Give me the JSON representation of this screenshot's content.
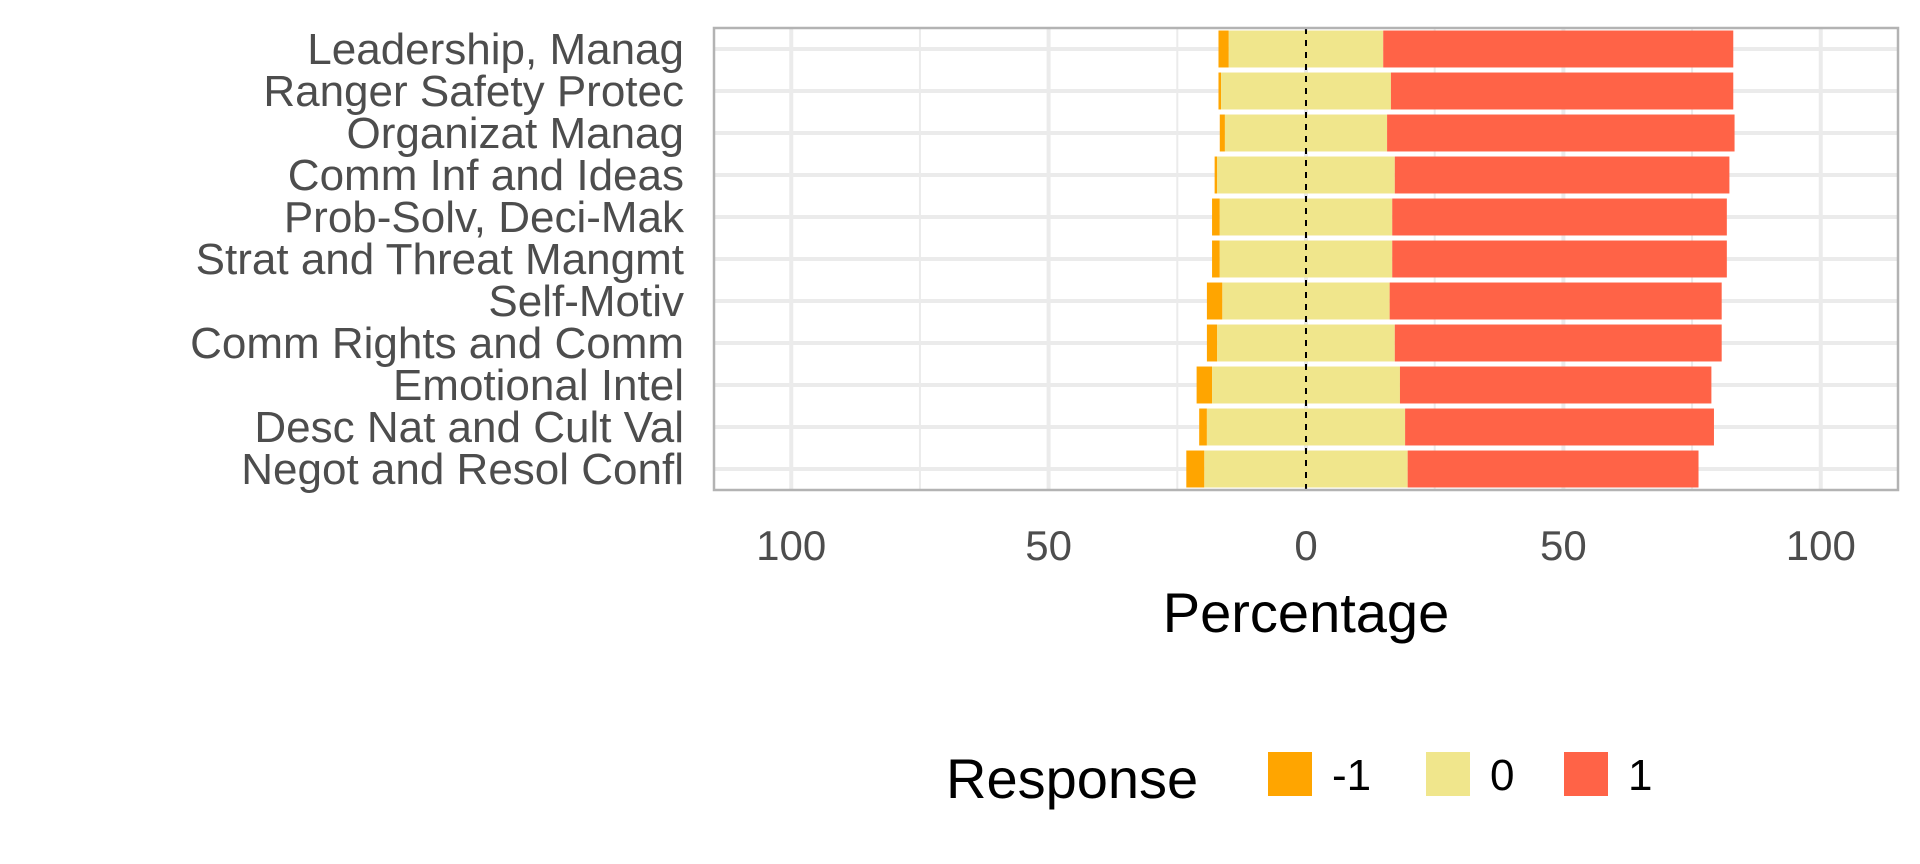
{
  "chart_data": {
    "type": "bar",
    "orientation": "horizontal",
    "stacking": "diverging",
    "categories": [
      "Leadership, Manag",
      "Ranger Safety Protec",
      "Organizat Manag",
      "Comm Inf and Ideas",
      "Prob-Solv, Deci-Mak",
      "Strat and Threat Mangmt",
      "Self-Motiv",
      "Comm Rights and Comm",
      "Emotional Intel",
      "Desc Nat and Cult Val",
      "Negot and Resol Confl"
    ],
    "series": [
      {
        "name": "-1",
        "color": "#FFA500",
        "values": [
          2,
          0.5,
          1,
          0.5,
          1.5,
          1.5,
          3,
          2,
          3,
          1.5,
          3.5
        ]
      },
      {
        "name": "0",
        "color": "#F0E68C",
        "values": [
          30,
          33,
          31.5,
          34.5,
          33.5,
          33.5,
          32.5,
          34.5,
          36.5,
          38.5,
          39.5
        ]
      },
      {
        "name": "1",
        "color": "#FF6347",
        "values": [
          68,
          66.5,
          67.5,
          65,
          65,
          65,
          64.5,
          63.5,
          60.5,
          60,
          56.5
        ]
      }
    ],
    "xlabel": "Percentage",
    "ylabel": "",
    "xlim": [
      -115,
      115
    ],
    "xticks": [
      -100,
      -50,
      0,
      50,
      100
    ],
    "xtick_labels": [
      "100",
      "50",
      "0",
      "50",
      "100"
    ],
    "zero_line": "dashed",
    "grid": true,
    "legend": {
      "title": "Response",
      "position": "bottom",
      "labels": [
        "-1",
        "0",
        "1"
      ]
    }
  }
}
